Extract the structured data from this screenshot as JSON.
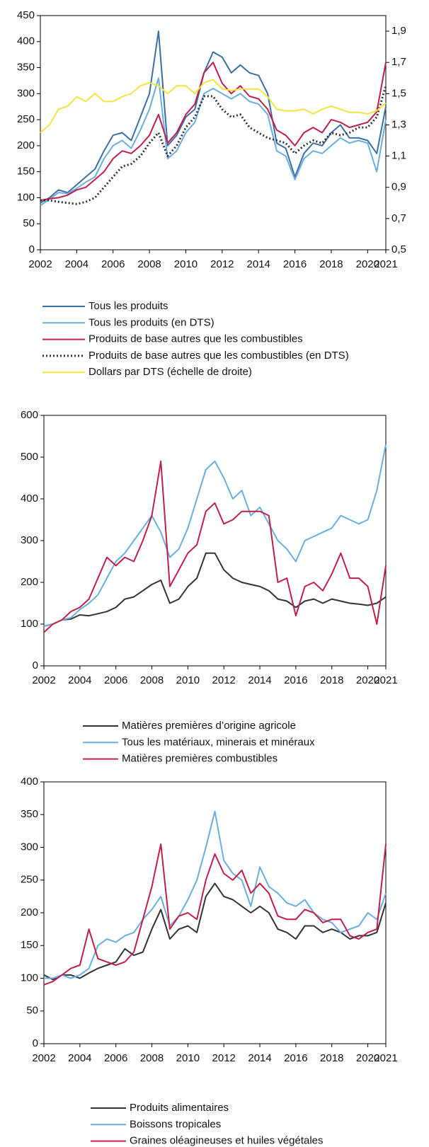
{
  "chart_data": [
    {
      "type": "line",
      "x": [
        2002,
        2002.5,
        2003,
        2003.5,
        2004,
        2004.5,
        2005,
        2005.5,
        2006,
        2006.5,
        2007,
        2007.5,
        2008,
        2008.5,
        2009,
        2009.5,
        2010,
        2010.5,
        2011,
        2011.5,
        2012,
        2012.5,
        2013,
        2013.5,
        2014,
        2014.5,
        2015,
        2015.5,
        2016,
        2016.5,
        2017,
        2017.5,
        2018,
        2018.5,
        2019,
        2019.5,
        2020,
        2020.5,
        2021
      ],
      "xlim": [
        2002,
        2021
      ],
      "xticks": [
        2002,
        2004,
        2006,
        2008,
        2010,
        2012,
        2014,
        2016,
        2018,
        2020,
        2021
      ],
      "ylim": [
        0,
        450
      ],
      "yticks": [
        0,
        50,
        100,
        150,
        200,
        250,
        300,
        350,
        400,
        450
      ],
      "y2lim": [
        0.5,
        2.0
      ],
      "y2ticks": [
        {
          "value": 0.5,
          "label": "0,5"
        },
        {
          "value": 0.7,
          "label": "0,7"
        },
        {
          "value": 0.9,
          "label": "0,9"
        },
        {
          "value": 1.1,
          "label": "1,1"
        },
        {
          "value": 1.3,
          "label": "1,3"
        },
        {
          "value": 1.5,
          "label": "1,5"
        },
        {
          "value": 1.7,
          "label": "1,7"
        },
        {
          "value": 1.9,
          "label": "1,9"
        }
      ],
      "legend": "bottom",
      "series": [
        {
          "name": "Tous les produits",
          "color": "#3a6fa5",
          "values": [
            90,
            100,
            115,
            110,
            125,
            140,
            155,
            190,
            220,
            225,
            210,
            255,
            300,
            420,
            200,
            220,
            255,
            270,
            340,
            380,
            370,
            340,
            355,
            340,
            335,
            300,
            205,
            195,
            140,
            185,
            205,
            200,
            225,
            240,
            215,
            215,
            210,
            185,
            275
          ]
        },
        {
          "name": "Tous les produits (en DTS)",
          "color": "#6aaee0",
          "values": [
            85,
            97,
            110,
            108,
            118,
            130,
            140,
            175,
            200,
            210,
            195,
            230,
            270,
            330,
            175,
            190,
            225,
            245,
            300,
            310,
            300,
            290,
            300,
            285,
            280,
            260,
            190,
            180,
            135,
            175,
            190,
            185,
            200,
            215,
            205,
            210,
            205,
            150,
            250
          ]
        },
        {
          "name": "Produits de base autres que les combustibles",
          "color": "#c0204a",
          "values": [
            95,
            98,
            100,
            105,
            115,
            120,
            135,
            150,
            175,
            190,
            185,
            200,
            220,
            260,
            205,
            225,
            260,
            280,
            340,
            360,
            320,
            300,
            315,
            295,
            290,
            270,
            230,
            220,
            200,
            225,
            235,
            225,
            250,
            245,
            235,
            240,
            245,
            265,
            360
          ]
        },
        {
          "name": "Produits de base autres que les combustibles (en DTS)",
          "color": "#333333",
          "style": "dotted",
          "values": [
            95,
            95,
            92,
            90,
            88,
            92,
            100,
            120,
            140,
            160,
            165,
            180,
            205,
            225,
            180,
            200,
            235,
            255,
            295,
            295,
            270,
            255,
            260,
            235,
            225,
            215,
            210,
            205,
            185,
            200,
            210,
            205,
            225,
            220,
            225,
            235,
            235,
            255,
            315
          ]
        },
        {
          "name": "Dollars par DTS (échelle de droite)",
          "color": "#f5e342",
          "axis": "y2",
          "values": [
            1.25,
            1.3,
            1.4,
            1.42,
            1.48,
            1.45,
            1.5,
            1.45,
            1.45,
            1.48,
            1.5,
            1.55,
            1.57,
            1.55,
            1.5,
            1.55,
            1.55,
            1.5,
            1.57,
            1.59,
            1.53,
            1.52,
            1.53,
            1.53,
            1.53,
            1.48,
            1.4,
            1.39,
            1.39,
            1.4,
            1.37,
            1.4,
            1.42,
            1.4,
            1.38,
            1.38,
            1.37,
            1.39,
            1.44
          ]
        }
      ]
    },
    {
      "type": "line",
      "x": [
        2002,
        2002.5,
        2003,
        2003.5,
        2004,
        2004.5,
        2005,
        2005.5,
        2006,
        2006.5,
        2007,
        2007.5,
        2008,
        2008.5,
        2009,
        2009.5,
        2010,
        2010.5,
        2011,
        2011.5,
        2012,
        2012.5,
        2013,
        2013.5,
        2014,
        2014.5,
        2015,
        2015.5,
        2016,
        2016.5,
        2017,
        2017.5,
        2018,
        2018.5,
        2019,
        2019.5,
        2020,
        2020.5,
        2021
      ],
      "xlim": [
        2002,
        2021
      ],
      "xticks": [
        2002,
        2004,
        2006,
        2008,
        2010,
        2012,
        2014,
        2016,
        2018,
        2020,
        2021
      ],
      "ylim": [
        0,
        600
      ],
      "yticks": [
        0,
        100,
        200,
        300,
        400,
        500,
        600
      ],
      "legend": "bottom",
      "series": [
        {
          "name": "Matières premières d’origine agricole",
          "color": "#333333",
          "values": [
            95,
            100,
            110,
            112,
            122,
            120,
            125,
            130,
            140,
            160,
            165,
            180,
            195,
            205,
            150,
            160,
            190,
            210,
            270,
            270,
            230,
            210,
            200,
            195,
            190,
            180,
            160,
            155,
            140,
            155,
            160,
            150,
            160,
            155,
            150,
            148,
            145,
            150,
            165
          ]
        },
        {
          "name": "Tous les matériaux, minerais et minéraux",
          "color": "#6aaee0",
          "values": [
            95,
            100,
            110,
            115,
            135,
            150,
            170,
            210,
            250,
            270,
            300,
            330,
            360,
            320,
            260,
            280,
            330,
            400,
            470,
            490,
            450,
            400,
            420,
            360,
            380,
            340,
            300,
            280,
            250,
            300,
            310,
            320,
            330,
            360,
            350,
            340,
            350,
            420,
            530
          ]
        },
        {
          "name": "Matières premières combustibles",
          "color": "#c0204a",
          "values": [
            80,
            100,
            110,
            130,
            140,
            160,
            210,
            260,
            240,
            260,
            250,
            300,
            360,
            490,
            190,
            230,
            270,
            290,
            370,
            390,
            340,
            350,
            370,
            370,
            370,
            360,
            200,
            210,
            120,
            190,
            200,
            180,
            220,
            270,
            210,
            210,
            190,
            100,
            240
          ]
        }
      ]
    },
    {
      "type": "line",
      "x": [
        2002,
        2002.5,
        2003,
        2003.5,
        2004,
        2004.5,
        2005,
        2005.5,
        2006,
        2006.5,
        2007,
        2007.5,
        2008,
        2008.5,
        2009,
        2009.5,
        2010,
        2010.5,
        2011,
        2011.5,
        2012,
        2012.5,
        2013,
        2013.5,
        2014,
        2014.5,
        2015,
        2015.5,
        2016,
        2016.5,
        2017,
        2017.5,
        2018,
        2018.5,
        2019,
        2019.5,
        2020,
        2020.5,
        2021
      ],
      "xlim": [
        2002,
        2021
      ],
      "xticks": [
        2002,
        2004,
        2006,
        2008,
        2010,
        2012,
        2014,
        2016,
        2018,
        2020,
        2021
      ],
      "ylim": [
        0,
        400
      ],
      "yticks": [
        0,
        50,
        100,
        150,
        200,
        250,
        300,
        350,
        400
      ],
      "legend": "bottom",
      "series": [
        {
          "name": "Produits alimentaires",
          "color": "#333333",
          "values": [
            105,
            98,
            105,
            105,
            100,
            108,
            115,
            120,
            125,
            145,
            135,
            140,
            175,
            205,
            160,
            175,
            180,
            170,
            225,
            245,
            225,
            220,
            210,
            200,
            210,
            200,
            175,
            170,
            160,
            180,
            180,
            170,
            175,
            170,
            160,
            165,
            165,
            170,
            215
          ]
        },
        {
          "name": "Boissons tropicales",
          "color": "#6aaee0",
          "values": [
            100,
            100,
            105,
            100,
            105,
            115,
            150,
            160,
            155,
            165,
            170,
            190,
            205,
            225,
            180,
            195,
            220,
            250,
            300,
            355,
            280,
            260,
            250,
            210,
            270,
            240,
            230,
            215,
            210,
            220,
            200,
            190,
            185,
            170,
            175,
            180,
            200,
            190,
            230
          ]
        },
        {
          "name": "Graines oléagineuses et huiles végétales",
          "color": "#c0204a",
          "values": [
            90,
            95,
            105,
            115,
            120,
            175,
            130,
            125,
            120,
            125,
            140,
            190,
            240,
            305,
            175,
            195,
            200,
            190,
            250,
            290,
            260,
            250,
            265,
            230,
            245,
            230,
            195,
            190,
            190,
            205,
            200,
            185,
            190,
            190,
            165,
            160,
            170,
            175,
            305
          ]
        }
      ]
    }
  ]
}
